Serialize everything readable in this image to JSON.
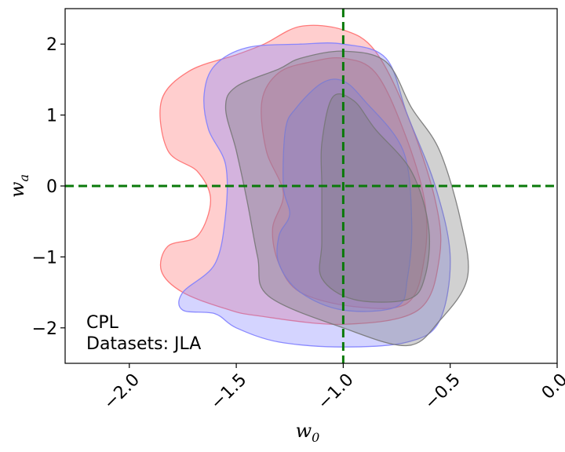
{
  "chart_data": {
    "type": "area",
    "subtype": "contour",
    "xlabel": "w",
    "xlabel_sub": "0",
    "ylabel": "w",
    "ylabel_sub": "a",
    "xlim": [
      -2.3,
      0.0
    ],
    "ylim": [
      -2.5,
      2.5
    ],
    "xticks": [
      -2.0,
      -1.5,
      -1.0,
      -0.5,
      0.0
    ],
    "xtick_labels": [
      "−2.0",
      "−1.5",
      "−1.0",
      "−0.5",
      "0.0"
    ],
    "yticks": [
      2,
      1,
      0,
      -1,
      -2
    ],
    "ytick_labels": [
      "2",
      "1",
      "0",
      "−1",
      "−2"
    ],
    "grid": false,
    "reference_lines": [
      {
        "orientation": "vertical",
        "value": -1.0,
        "color": "#0a7a0a",
        "style": "dashed"
      },
      {
        "orientation": "horizontal",
        "value": 0.0,
        "color": "#0a7a0a",
        "style": "dashed"
      }
    ],
    "annotation": {
      "line1": "CPL",
      "line2": "Datasets: JLA"
    },
    "series": [
      {
        "color": "#ff6e6e",
        "contours": [
          {
            "level": "outer",
            "points": [
              [
                -1.37,
                2.0
              ],
              [
                -1.2,
                2.25
              ],
              [
                -1.0,
                2.2
              ],
              [
                -0.85,
                1.9
              ],
              [
                -0.7,
                1.0
              ],
              [
                -0.57,
                -0.2
              ],
              [
                -0.55,
                -1.0
              ],
              [
                -0.65,
                -1.75
              ],
              [
                -1.0,
                -1.95
              ],
              [
                -1.4,
                -1.83
              ],
              [
                -1.55,
                -1.73
              ],
              [
                -1.75,
                -1.5
              ],
              [
                -1.85,
                -1.2
              ],
              [
                -1.82,
                -0.85
              ],
              [
                -1.68,
                -0.7
              ],
              [
                -1.62,
                -0.2
              ],
              [
                -1.68,
                0.2
              ],
              [
                -1.82,
                0.5
              ],
              [
                -1.85,
                1.2
              ],
              [
                -1.72,
                1.62
              ],
              [
                -1.5,
                1.85
              ]
            ]
          },
          {
            "level": "inner",
            "points": [
              [
                -1.15,
                1.75
              ],
              [
                -1.0,
                1.8
              ],
              [
                -0.85,
                1.6
              ],
              [
                -0.72,
                0.8
              ],
              [
                -0.62,
                -0.2
              ],
              [
                -0.62,
                -1.0
              ],
              [
                -0.7,
                -1.65
              ],
              [
                -0.95,
                -1.7
              ],
              [
                -1.2,
                -1.5
              ],
              [
                -1.3,
                -1.1
              ],
              [
                -1.33,
                -0.6
              ],
              [
                -1.28,
                -0.1
              ],
              [
                -1.36,
                0.5
              ],
              [
                -1.38,
                1.2
              ],
              [
                -1.3,
                1.6
              ]
            ]
          }
        ]
      },
      {
        "color": "#8080ff",
        "contours": [
          {
            "level": "outer",
            "points": [
              [
                -1.2,
                2.0
              ],
              [
                -1.0,
                2.0
              ],
              [
                -0.8,
                1.8
              ],
              [
                -0.7,
                1.0
              ],
              [
                -0.57,
                0.0
              ],
              [
                -0.5,
                -1.0
              ],
              [
                -0.55,
                -1.9
              ],
              [
                -0.7,
                -2.2
              ],
              [
                -1.0,
                -2.27
              ],
              [
                -1.3,
                -2.2
              ],
              [
                -1.5,
                -2.0
              ],
              [
                -1.6,
                -1.8
              ],
              [
                -1.75,
                -1.75
              ],
              [
                -1.75,
                -1.5
              ],
              [
                -1.6,
                -1.1
              ],
              [
                -1.55,
                -0.4
              ],
              [
                -1.55,
                0.3
              ],
              [
                -1.63,
                0.8
              ],
              [
                -1.65,
                1.3
              ],
              [
                -1.6,
                1.7
              ],
              [
                -1.45,
                1.95
              ]
            ]
          },
          {
            "level": "inner",
            "points": [
              [
                -1.1,
                1.45
              ],
              [
                -1.0,
                1.48
              ],
              [
                -0.9,
                1.2
              ],
              [
                -0.72,
                0.5
              ],
              [
                -0.68,
                -0.5
              ],
              [
                -0.7,
                -1.3
              ],
              [
                -0.75,
                -1.7
              ],
              [
                -1.0,
                -1.75
              ],
              [
                -1.2,
                -1.5
              ],
              [
                -1.3,
                -1.1
              ],
              [
                -1.3,
                -0.7
              ],
              [
                -1.25,
                -0.4
              ],
              [
                -1.28,
                0.0
              ],
              [
                -1.27,
                0.8
              ],
              [
                -1.22,
                1.1
              ]
            ]
          }
        ]
      },
      {
        "color": "#777777",
        "contours": [
          {
            "level": "outer",
            "points": [
              [
                -1.2,
                1.8
              ],
              [
                -1.0,
                1.9
              ],
              [
                -0.8,
                1.75
              ],
              [
                -0.68,
                1.1
              ],
              [
                -0.55,
                0.5
              ],
              [
                -0.45,
                -0.5
              ],
              [
                -0.42,
                -1.3
              ],
              [
                -0.55,
                -1.9
              ],
              [
                -0.7,
                -2.25
              ],
              [
                -1.0,
                -2.0
              ],
              [
                -1.35,
                -1.55
              ],
              [
                -1.4,
                -1.0
              ],
              [
                -1.45,
                -0.2
              ],
              [
                -1.5,
                0.5
              ],
              [
                -1.55,
                1.1
              ],
              [
                -1.5,
                1.4
              ],
              [
                -1.3,
                1.65
              ]
            ]
          },
          {
            "level": "inner",
            "points": [
              [
                -1.05,
                1.25
              ],
              [
                -0.95,
                1.2
              ],
              [
                -0.85,
                0.8
              ],
              [
                -0.68,
                0.2
              ],
              [
                -0.6,
                -0.6
              ],
              [
                -0.62,
                -1.3
              ],
              [
                -0.7,
                -1.6
              ],
              [
                -0.95,
                -1.6
              ],
              [
                -1.1,
                -1.3
              ],
              [
                -1.1,
                -0.8
              ],
              [
                -1.1,
                0.0
              ],
              [
                -1.1,
                0.6
              ]
            ]
          }
        ]
      }
    ]
  }
}
